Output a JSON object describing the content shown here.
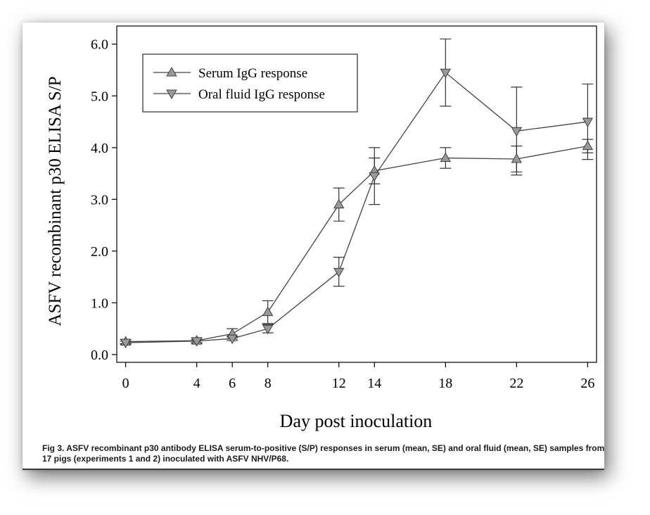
{
  "figure": {
    "caption": "Fig 3. ASFV recombinant p30 antibody ELISA serum-to-positive (S/P) responses in serum (mean, SE) and oral fluid (mean, SE) samples from 17 pigs (experiments 1 and 2) inoculated with ASFV NHV/P68."
  },
  "chart_data": {
    "type": "line",
    "title": "",
    "xlabel": "Day post inoculation",
    "ylabel": "ASFV recombinant p30 ELISA S/P",
    "x_ticks": [
      0,
      4,
      6,
      8,
      12,
      14,
      18,
      22,
      26
    ],
    "y_ticks": [
      "0.0",
      "1.0",
      "2.0",
      "3.0",
      "4.0",
      "5.0",
      "6.0"
    ],
    "xlim": [
      -0.5,
      26.5
    ],
    "ylim": [
      -0.15,
      6.35
    ],
    "grid": false,
    "legend_position": "top-left",
    "series": [
      {
        "name": "Serum IgG response",
        "marker": "triangle-up",
        "color": "#999999",
        "x": [
          0,
          4,
          6,
          8,
          12,
          14,
          18,
          22,
          26
        ],
        "y": [
          0.25,
          0.27,
          0.4,
          0.82,
          2.9,
          3.55,
          3.8,
          3.78,
          4.03
        ],
        "err": [
          0.04,
          0.05,
          0.1,
          0.22,
          0.32,
          0.25,
          0.2,
          0.25,
          0.13
        ]
      },
      {
        "name": "Oral fluid IgG response",
        "marker": "triangle-down",
        "color": "#999999",
        "x": [
          0,
          4,
          6,
          8,
          12,
          14,
          18,
          22,
          26
        ],
        "y": [
          0.23,
          0.26,
          0.31,
          0.5,
          1.6,
          3.45,
          5.45,
          4.32,
          4.5
        ],
        "err": [
          0.03,
          0.03,
          0.04,
          0.08,
          0.28,
          0.55,
          0.65,
          0.85,
          0.73
        ]
      }
    ]
  }
}
